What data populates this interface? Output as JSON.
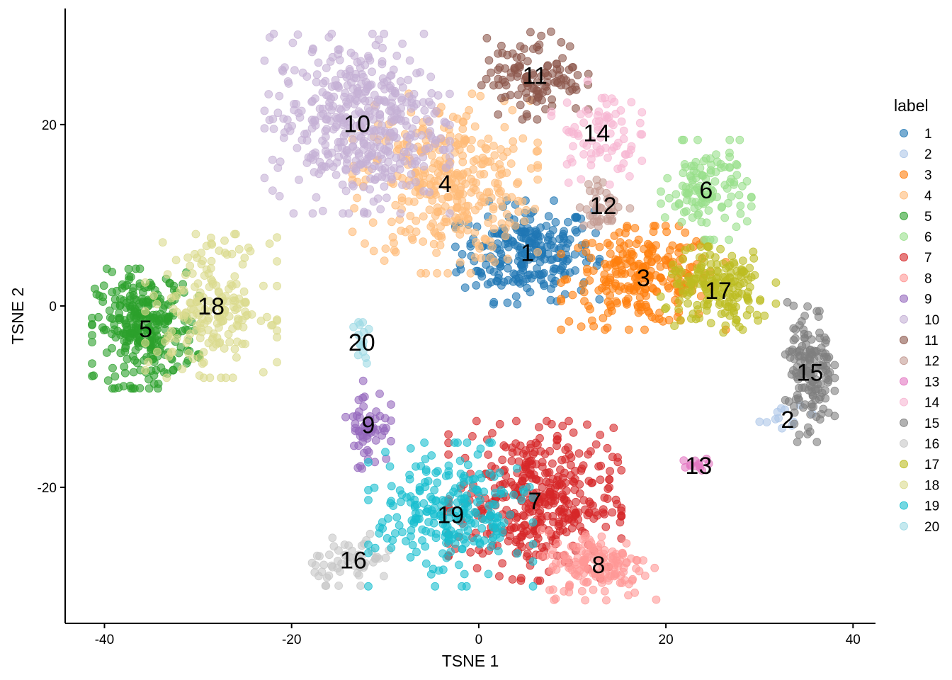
{
  "chart_data": {
    "type": "scatter",
    "title": "",
    "xlabel": "TSNE 1",
    "ylabel": "TSNE 2",
    "xlim": [
      -44.2,
      42.4
    ],
    "ylim": [
      -35,
      32.8
    ],
    "xticks": [
      -40,
      -20,
      0,
      20,
      40
    ],
    "yticks": [
      -20,
      0,
      20
    ],
    "grid": false,
    "legend": {
      "title": "label",
      "placement": "right"
    },
    "point_alpha": 0.6,
    "clusters": [
      {
        "label": "1",
        "color": "#1f77b4",
        "center": [
          5.2,
          5.9
        ],
        "sd": [
          3.5,
          2.6
        ],
        "n": 250
      },
      {
        "label": "2",
        "color": "#aec7e8",
        "center": [
          33.0,
          -12.5
        ],
        "sd": [
          1.5,
          0.7
        ],
        "n": 12
      },
      {
        "label": "3",
        "color": "#ff7f0e",
        "center": [
          17.6,
          3.1
        ],
        "sd": [
          4.0,
          2.6
        ],
        "n": 250
      },
      {
        "label": "4",
        "color": "#ffbb78",
        "center": [
          -3.6,
          13.5
        ],
        "sd": [
          4.5,
          4.5
        ],
        "n": 350
      },
      {
        "label": "5",
        "color": "#2ca02c",
        "center": [
          -35.6,
          -2.5
        ],
        "sd": [
          2.6,
          3.0
        ],
        "n": 300
      },
      {
        "label": "6",
        "color": "#98df8a",
        "center": [
          24.3,
          12.8
        ],
        "sd": [
          2.2,
          2.5
        ],
        "n": 120
      },
      {
        "label": "7",
        "color": "#d62728",
        "center": [
          6.0,
          -21.5
        ],
        "sd": [
          4.2,
          4.0
        ],
        "n": 400
      },
      {
        "label": "8",
        "color": "#ff9896",
        "center": [
          12.8,
          -28.5
        ],
        "sd": [
          2.8,
          1.8
        ],
        "n": 150
      },
      {
        "label": "9",
        "color": "#9467bd",
        "center": [
          -11.8,
          -13.1
        ],
        "sd": [
          1.1,
          2.2
        ],
        "n": 60
      },
      {
        "label": "10",
        "color": "#c5b0d5",
        "center": [
          -13.0,
          20.1
        ],
        "sd": [
          4.5,
          4.5
        ],
        "n": 450
      },
      {
        "label": "11",
        "color": "#8c564b",
        "center": [
          6.0,
          25.4
        ],
        "sd": [
          2.6,
          2.2
        ],
        "n": 120
      },
      {
        "label": "12",
        "color": "#c49c94",
        "center": [
          13.3,
          11.1
        ],
        "sd": [
          1.3,
          1.3
        ],
        "n": 40
      },
      {
        "label": "13",
        "color": "#e377c2",
        "center": [
          23.5,
          -17.6
        ],
        "sd": [
          0.8,
          0.4
        ],
        "n": 12
      },
      {
        "label": "14",
        "color": "#f7b6d2",
        "center": [
          12.6,
          19.1
        ],
        "sd": [
          2.2,
          2.6
        ],
        "n": 80
      },
      {
        "label": "15",
        "color": "#7f7f7f",
        "center": [
          35.4,
          -7.3
        ],
        "sd": [
          1.2,
          3.5
        ],
        "n": 150
      },
      {
        "label": "16",
        "color": "#c7c7c7",
        "center": [
          -13.4,
          -28.0
        ],
        "sd": [
          2.2,
          1.3
        ],
        "n": 60
      },
      {
        "label": "17",
        "color": "#bcbd22",
        "center": [
          25.6,
          1.7
        ],
        "sd": [
          2.8,
          2.2
        ],
        "n": 180
      },
      {
        "label": "18",
        "color": "#dbdb8d",
        "center": [
          -28.6,
          0.0
        ],
        "sd": [
          3.2,
          3.6
        ],
        "n": 200
      },
      {
        "label": "19",
        "color": "#17becf",
        "center": [
          -3.0,
          -23.0
        ],
        "sd": [
          4.0,
          3.6
        ],
        "n": 250
      },
      {
        "label": "20",
        "color": "#9edae5",
        "center": [
          -12.5,
          -4.0
        ],
        "sd": [
          0.4,
          1.4
        ],
        "n": 15
      }
    ]
  }
}
